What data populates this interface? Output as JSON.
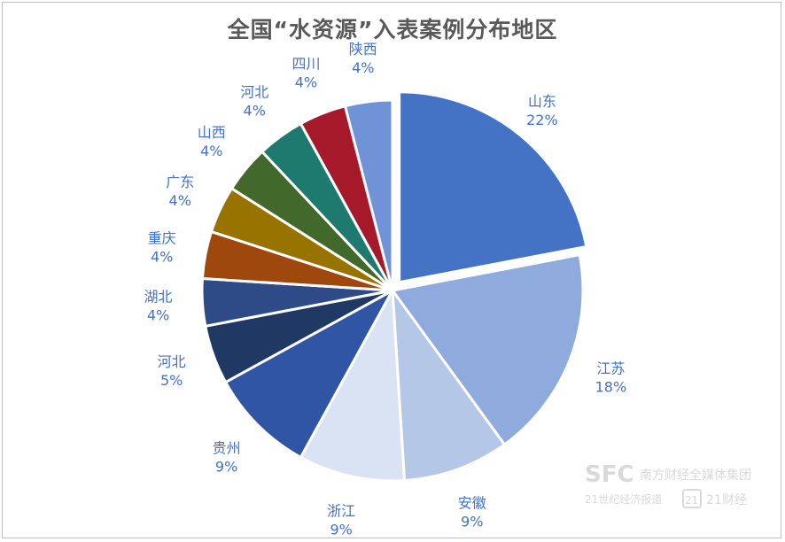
{
  "chart_data": {
    "type": "pie",
    "title": "全国“水资源”入表案例分布地区",
    "categories": [
      "山东",
      "江苏",
      "安徽",
      "浙江",
      "贵州",
      "河北",
      "湖北",
      "重庆",
      "广东",
      "山西",
      "河北",
      "四川",
      "陕西"
    ],
    "values": [
      22,
      18,
      9,
      9,
      9,
      5,
      4,
      4,
      4,
      4,
      4,
      4,
      4
    ],
    "value_labels": [
      "22%",
      "18%",
      "9%",
      "9%",
      "9%",
      "5%",
      "4%",
      "4%",
      "4%",
      "4%",
      "4%",
      "4%",
      "4%"
    ],
    "exploded": [
      "山东"
    ],
    "colors": [
      "#4472c4",
      "#8faadc",
      "#b4c7e7",
      "#dae3f3",
      "#2f55a4",
      "#203864",
      "#2e4a87",
      "#9e480e",
      "#997300",
      "#43682b",
      "#1e7a6e",
      "#a5192a",
      "#6f93d6"
    ],
    "label_color": "#4472c4",
    "legend": false
  },
  "watermark": {
    "brand": "SFC",
    "org": "南方财经全媒体集团",
    "outlet": "21世纪经济报道",
    "badge": "21",
    "app": "21财经"
  }
}
